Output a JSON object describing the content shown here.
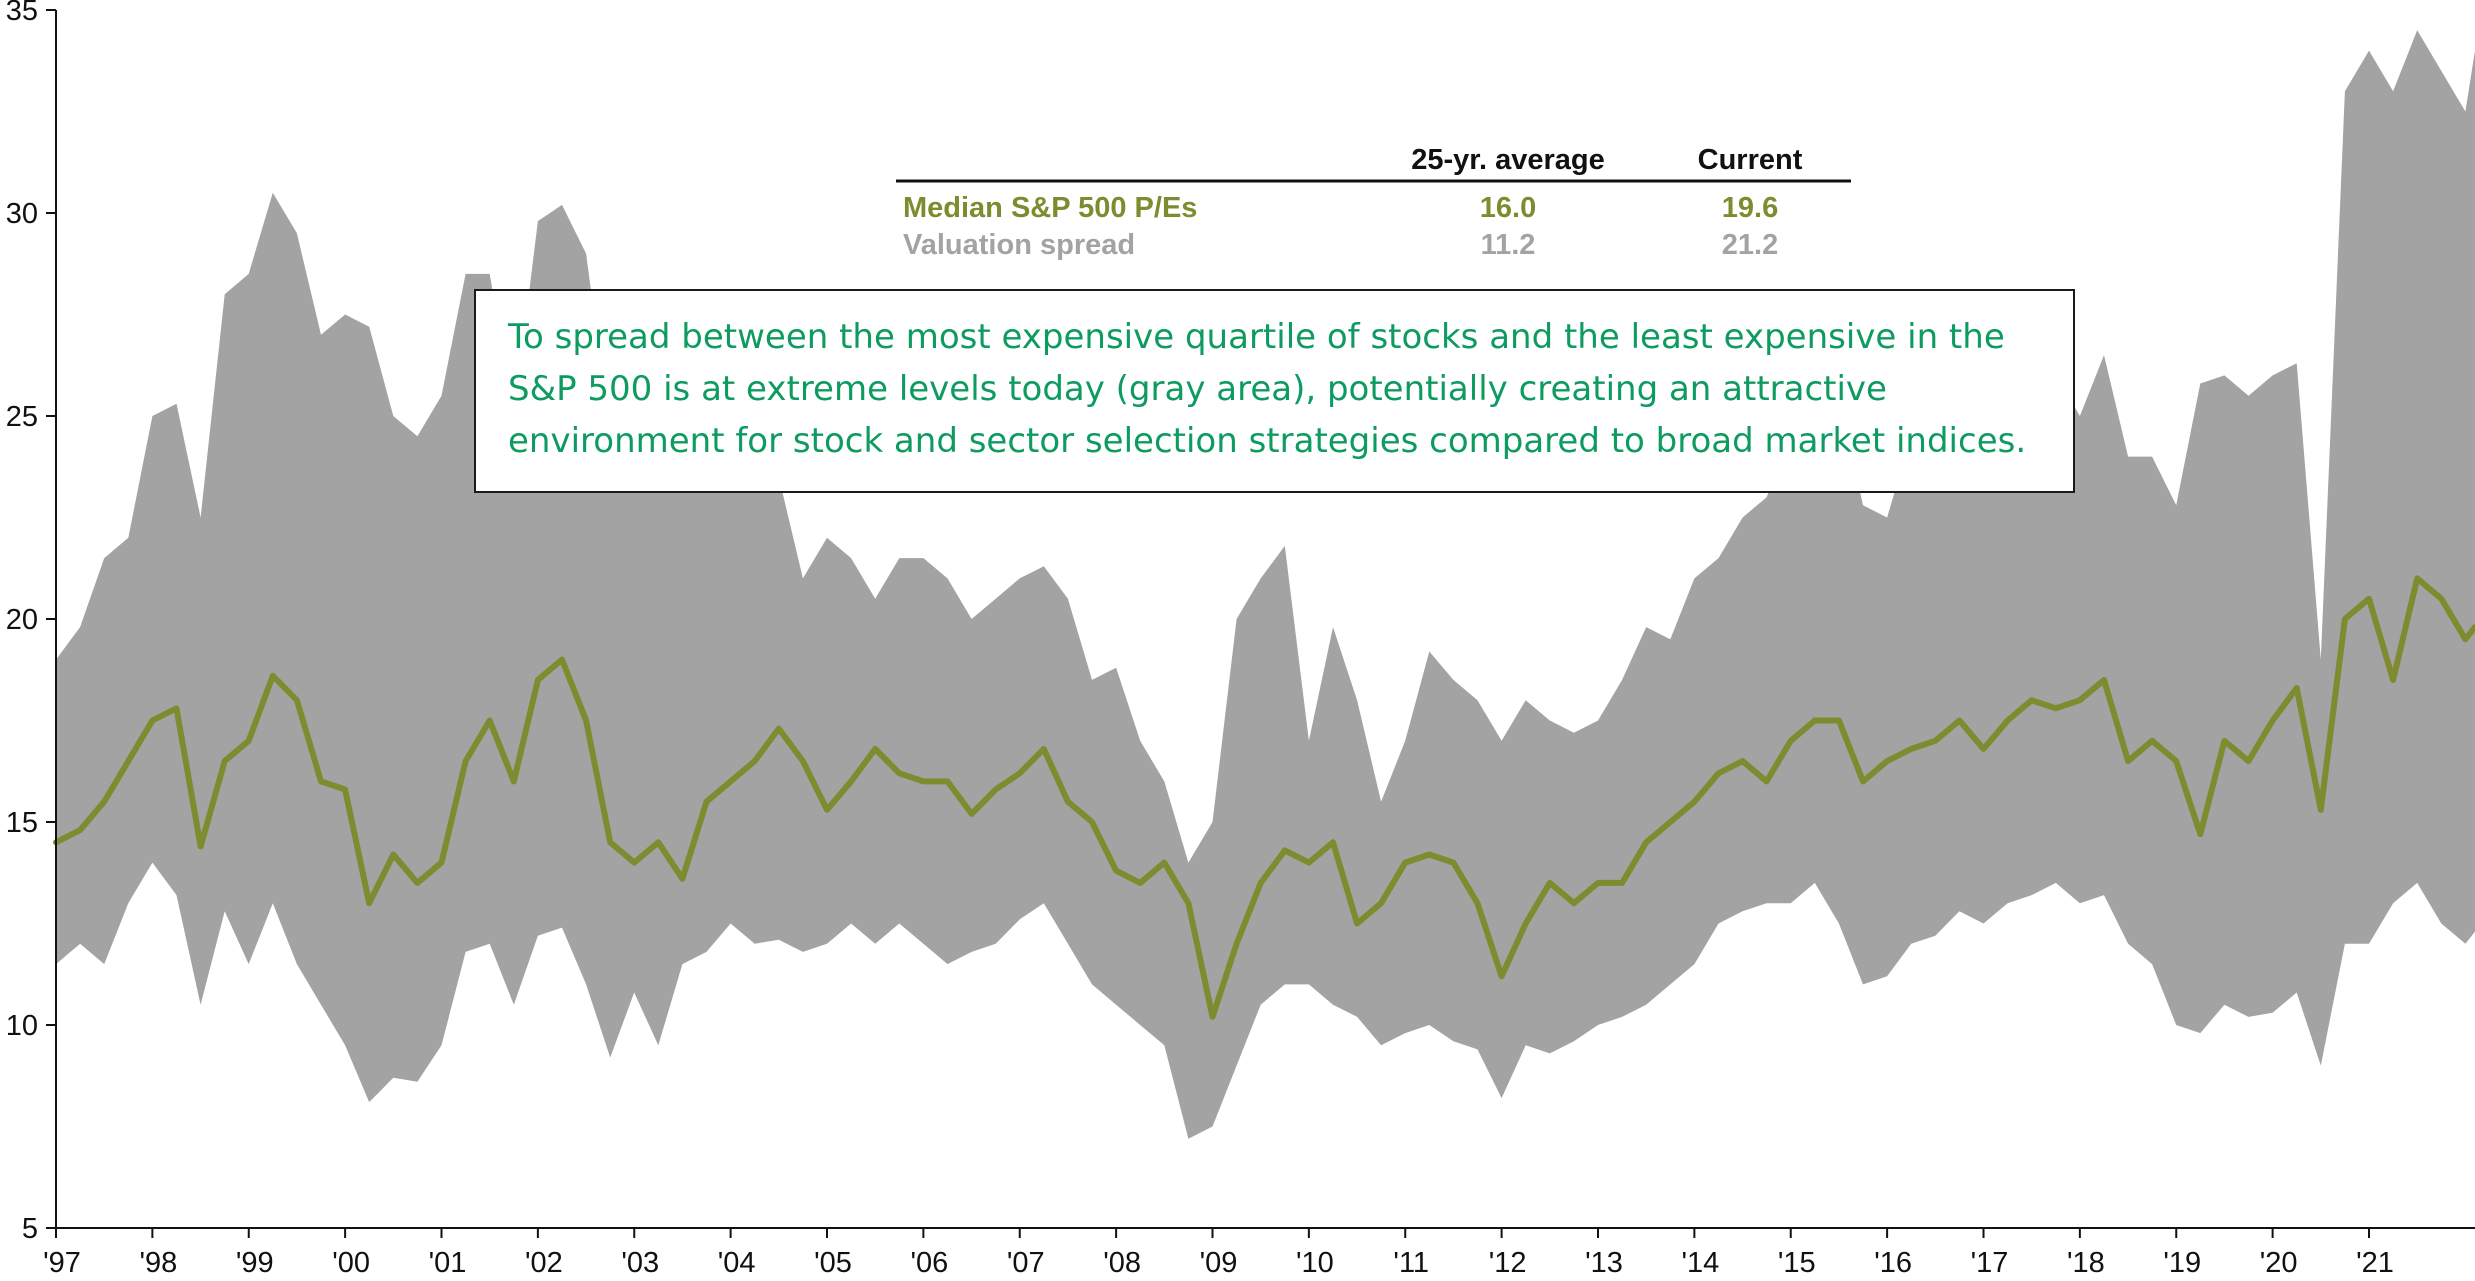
{
  "chart_data": {
    "type": "area",
    "title": "",
    "xlabel": "",
    "ylabel": "",
    "ylim": [
      5,
      35
    ],
    "yticks": [
      5,
      10,
      15,
      20,
      25,
      30,
      35
    ],
    "xlim": [
      1997,
      2022.1
    ],
    "xticks": [
      {
        "x": 1997,
        "label": "'97"
      },
      {
        "x": 1998,
        "label": "'98"
      },
      {
        "x": 1999,
        "label": "'99"
      },
      {
        "x": 2000,
        "label": "'00"
      },
      {
        "x": 2001,
        "label": "'01"
      },
      {
        "x": 2002,
        "label": "'02"
      },
      {
        "x": 2003,
        "label": "'03"
      },
      {
        "x": 2004,
        "label": "'04"
      },
      {
        "x": 2005,
        "label": "'05"
      },
      {
        "x": 2006,
        "label": "'06"
      },
      {
        "x": 2007,
        "label": "'07"
      },
      {
        "x": 2008,
        "label": "'08"
      },
      {
        "x": 2009,
        "label": "'09"
      },
      {
        "x": 2010,
        "label": "'10"
      },
      {
        "x": 2011,
        "label": "'11"
      },
      {
        "x": 2012,
        "label": "'12"
      },
      {
        "x": 2013,
        "label": "'13"
      },
      {
        "x": 2014,
        "label": "'14"
      },
      {
        "x": 2015,
        "label": "'15"
      },
      {
        "x": 2016,
        "label": "'16"
      },
      {
        "x": 2017,
        "label": "'17"
      },
      {
        "x": 2018,
        "label": "'18"
      },
      {
        "x": 2019,
        "label": "'19"
      },
      {
        "x": 2020,
        "label": "'20"
      },
      {
        "x": 2021,
        "label": "'21"
      }
    ],
    "grid": false,
    "series": [
      {
        "kind": "band",
        "color": "#a3a3a3",
        "x": [
          1997.0,
          1997.25,
          1997.5,
          1997.75,
          1998.0,
          1998.25,
          1998.5,
          1998.75,
          1999.0,
          1999.25,
          1999.5,
          1999.75,
          2000.0,
          2000.25,
          2000.5,
          2000.75,
          2001.0,
          2001.25,
          2001.5,
          2001.75,
          2002.0,
          2002.25,
          2002.5,
          2002.75,
          2003.0,
          2003.25,
          2003.5,
          2003.75,
          2004.0,
          2004.25,
          2004.5,
          2004.75,
          2005.0,
          2005.25,
          2005.5,
          2005.75,
          2006.0,
          2006.25,
          2006.5,
          2006.75,
          2007.0,
          2007.25,
          2007.5,
          2007.75,
          2008.0,
          2008.25,
          2008.5,
          2008.75,
          2009.0,
          2009.25,
          2009.5,
          2009.75,
          2010.0,
          2010.25,
          2010.5,
          2010.75,
          2011.0,
          2011.25,
          2011.5,
          2011.75,
          2012.0,
          2012.25,
          2012.5,
          2012.75,
          2013.0,
          2013.25,
          2013.5,
          2013.75,
          2014.0,
          2014.25,
          2014.5,
          2014.75,
          2015.0,
          2015.25,
          2015.5,
          2015.75,
          2016.0,
          2016.25,
          2016.5,
          2016.75,
          2017.0,
          2017.25,
          2017.5,
          2017.75,
          2018.0,
          2018.25,
          2018.5,
          2018.75,
          2019.0,
          2019.25,
          2019.5,
          2019.75,
          2020.0,
          2020.25,
          2020.5,
          2020.75,
          2021.0,
          2021.25,
          2021.5,
          2021.75,
          2022.0,
          2022.1
        ],
        "upper": [
          19.0,
          19.8,
          21.5,
          22.0,
          25.0,
          25.3,
          22.5,
          28.0,
          28.5,
          30.5,
          29.5,
          27.0,
          27.5,
          27.2,
          25.0,
          24.5,
          25.5,
          28.5,
          28.5,
          25.0,
          29.8,
          30.2,
          29.0,
          24.5,
          23.5,
          25.0,
          25.5,
          24.0,
          23.5,
          24.0,
          23.5,
          21.0,
          22.0,
          21.5,
          20.5,
          21.5,
          21.5,
          21.0,
          20.0,
          20.5,
          21.0,
          21.3,
          20.5,
          18.5,
          18.8,
          17.0,
          16.0,
          14.0,
          15.0,
          20.0,
          21.0,
          21.8,
          17.0,
          19.8,
          18.0,
          15.5,
          17.0,
          19.2,
          18.5,
          18.0,
          17.0,
          18.0,
          17.5,
          17.2,
          17.5,
          18.5,
          19.8,
          19.5,
          21.0,
          21.5,
          22.5,
          23.0,
          24.5,
          26.0,
          25.5,
          22.8,
          22.5,
          24.5,
          25.0,
          25.5,
          24.0,
          24.0,
          25.5,
          26.0,
          25.0,
          26.5,
          24.0,
          24.0,
          22.8,
          25.8,
          26.0,
          25.5,
          26.0,
          26.3,
          19.0,
          33.0,
          34.0,
          33.0,
          34.5,
          33.5,
          32.5,
          34.0
        ],
        "lower": [
          11.5,
          12.0,
          11.5,
          13.0,
          14.0,
          13.2,
          10.5,
          12.8,
          11.5,
          13.0,
          11.5,
          10.5,
          9.5,
          8.1,
          8.7,
          8.6,
          9.5,
          11.8,
          12.0,
          10.5,
          12.2,
          12.4,
          11.0,
          9.2,
          10.8,
          9.5,
          11.5,
          11.8,
          12.5,
          12.0,
          12.1,
          11.8,
          12.0,
          12.5,
          12.0,
          12.5,
          12.0,
          11.5,
          11.8,
          12.0,
          12.6,
          13.0,
          12.0,
          11.0,
          10.5,
          10.0,
          9.5,
          7.2,
          7.5,
          9.0,
          10.5,
          11.0,
          11.0,
          10.5,
          10.2,
          9.5,
          9.8,
          10.0,
          9.6,
          9.4,
          8.2,
          9.5,
          9.3,
          9.6,
          10.0,
          10.2,
          10.5,
          11.0,
          11.5,
          12.5,
          12.8,
          13.0,
          13.0,
          13.5,
          12.5,
          11.0,
          11.2,
          12.0,
          12.2,
          12.8,
          12.5,
          13.0,
          13.2,
          13.5,
          13.0,
          13.2,
          12.0,
          11.5,
          10.0,
          9.8,
          10.5,
          10.2,
          10.3,
          10.8,
          9.0,
          12.0,
          12.0,
          13.0,
          13.5,
          12.5,
          12.0,
          12.3
        ]
      },
      {
        "name": "Median S&P 500 P/Es",
        "kind": "line",
        "color": "#7f8b2f",
        "x": [
          1997.0,
          1997.25,
          1997.5,
          1997.75,
          1998.0,
          1998.25,
          1998.5,
          1998.75,
          1999.0,
          1999.25,
          1999.5,
          1999.75,
          2000.0,
          2000.25,
          2000.5,
          2000.75,
          2001.0,
          2001.25,
          2001.5,
          2001.75,
          2002.0,
          2002.25,
          2002.5,
          2002.75,
          2003.0,
          2003.25,
          2003.5,
          2003.75,
          2004.0,
          2004.25,
          2004.5,
          2004.75,
          2005.0,
          2005.25,
          2005.5,
          2005.75,
          2006.0,
          2006.25,
          2006.5,
          2006.75,
          2007.0,
          2007.25,
          2007.5,
          2007.75,
          2008.0,
          2008.25,
          2008.5,
          2008.75,
          2009.0,
          2009.25,
          2009.5,
          2009.75,
          2010.0,
          2010.25,
          2010.5,
          2010.75,
          2011.0,
          2011.25,
          2011.5,
          2011.75,
          2012.0,
          2012.25,
          2012.5,
          2012.75,
          2013.0,
          2013.25,
          2013.5,
          2013.75,
          2014.0,
          2014.25,
          2014.5,
          2014.75,
          2015.0,
          2015.25,
          2015.5,
          2015.75,
          2016.0,
          2016.25,
          2016.5,
          2016.75,
          2017.0,
          2017.25,
          2017.5,
          2017.75,
          2018.0,
          2018.25,
          2018.5,
          2018.75,
          2019.0,
          2019.25,
          2019.5,
          2019.75,
          2020.0,
          2020.25,
          2020.5,
          2020.75,
          2021.0,
          2021.25,
          2021.5,
          2021.75,
          2022.0,
          2022.1
        ],
        "y": [
          14.5,
          14.8,
          15.5,
          16.5,
          17.5,
          17.8,
          14.4,
          16.5,
          17.0,
          18.6,
          18.0,
          16.0,
          15.8,
          13.0,
          14.2,
          13.5,
          14.0,
          16.5,
          17.5,
          16.0,
          18.5,
          19.0,
          17.5,
          14.5,
          14.0,
          14.5,
          13.6,
          15.5,
          16.0,
          16.5,
          17.3,
          16.5,
          15.3,
          16.0,
          16.8,
          16.2,
          16.0,
          16.0,
          15.2,
          15.8,
          16.2,
          16.8,
          15.5,
          15.0,
          13.8,
          13.5,
          14.0,
          13.0,
          10.2,
          12.0,
          13.5,
          14.3,
          14.0,
          14.5,
          12.5,
          13.0,
          14.0,
          14.2,
          14.0,
          13.0,
          11.2,
          12.5,
          13.5,
          13.0,
          13.5,
          13.5,
          14.5,
          15.0,
          15.5,
          16.2,
          16.5,
          16.0,
          17.0,
          17.5,
          17.5,
          16.0,
          16.5,
          16.8,
          17.0,
          17.5,
          16.8,
          17.5,
          18.0,
          17.8,
          18.0,
          18.5,
          16.5,
          17.0,
          16.5,
          14.7,
          17.0,
          16.5,
          17.5,
          18.3,
          15.3,
          20.0,
          20.5,
          18.5,
          21.0,
          20.5,
          19.5,
          19.8
        ]
      },
      {
        "name": "Valuation spread",
        "kind": "legend-only",
        "color": "#a3a3a3"
      }
    ],
    "table": {
      "headers": [
        "",
        "25-yr. average",
        "Current"
      ],
      "rows": [
        {
          "label": "Median S&P 500 P/Es",
          "avg": "16.0",
          "current": "19.6",
          "color": "#7f8b2f"
        },
        {
          "label": "Valuation spread",
          "avg": "11.2",
          "current": "21.2",
          "color": "#a3a3a3"
        }
      ]
    },
    "annotation": {
      "lines": [
        "To spread between the most expensive quartile of stocks and the least expensive in the",
        "S&P 500 is at extreme levels today (gray area), potentially creating an attractive",
        "environment for stock and sector selection strategies compared to broad market indices."
      ],
      "color": "#0e9b60"
    }
  }
}
